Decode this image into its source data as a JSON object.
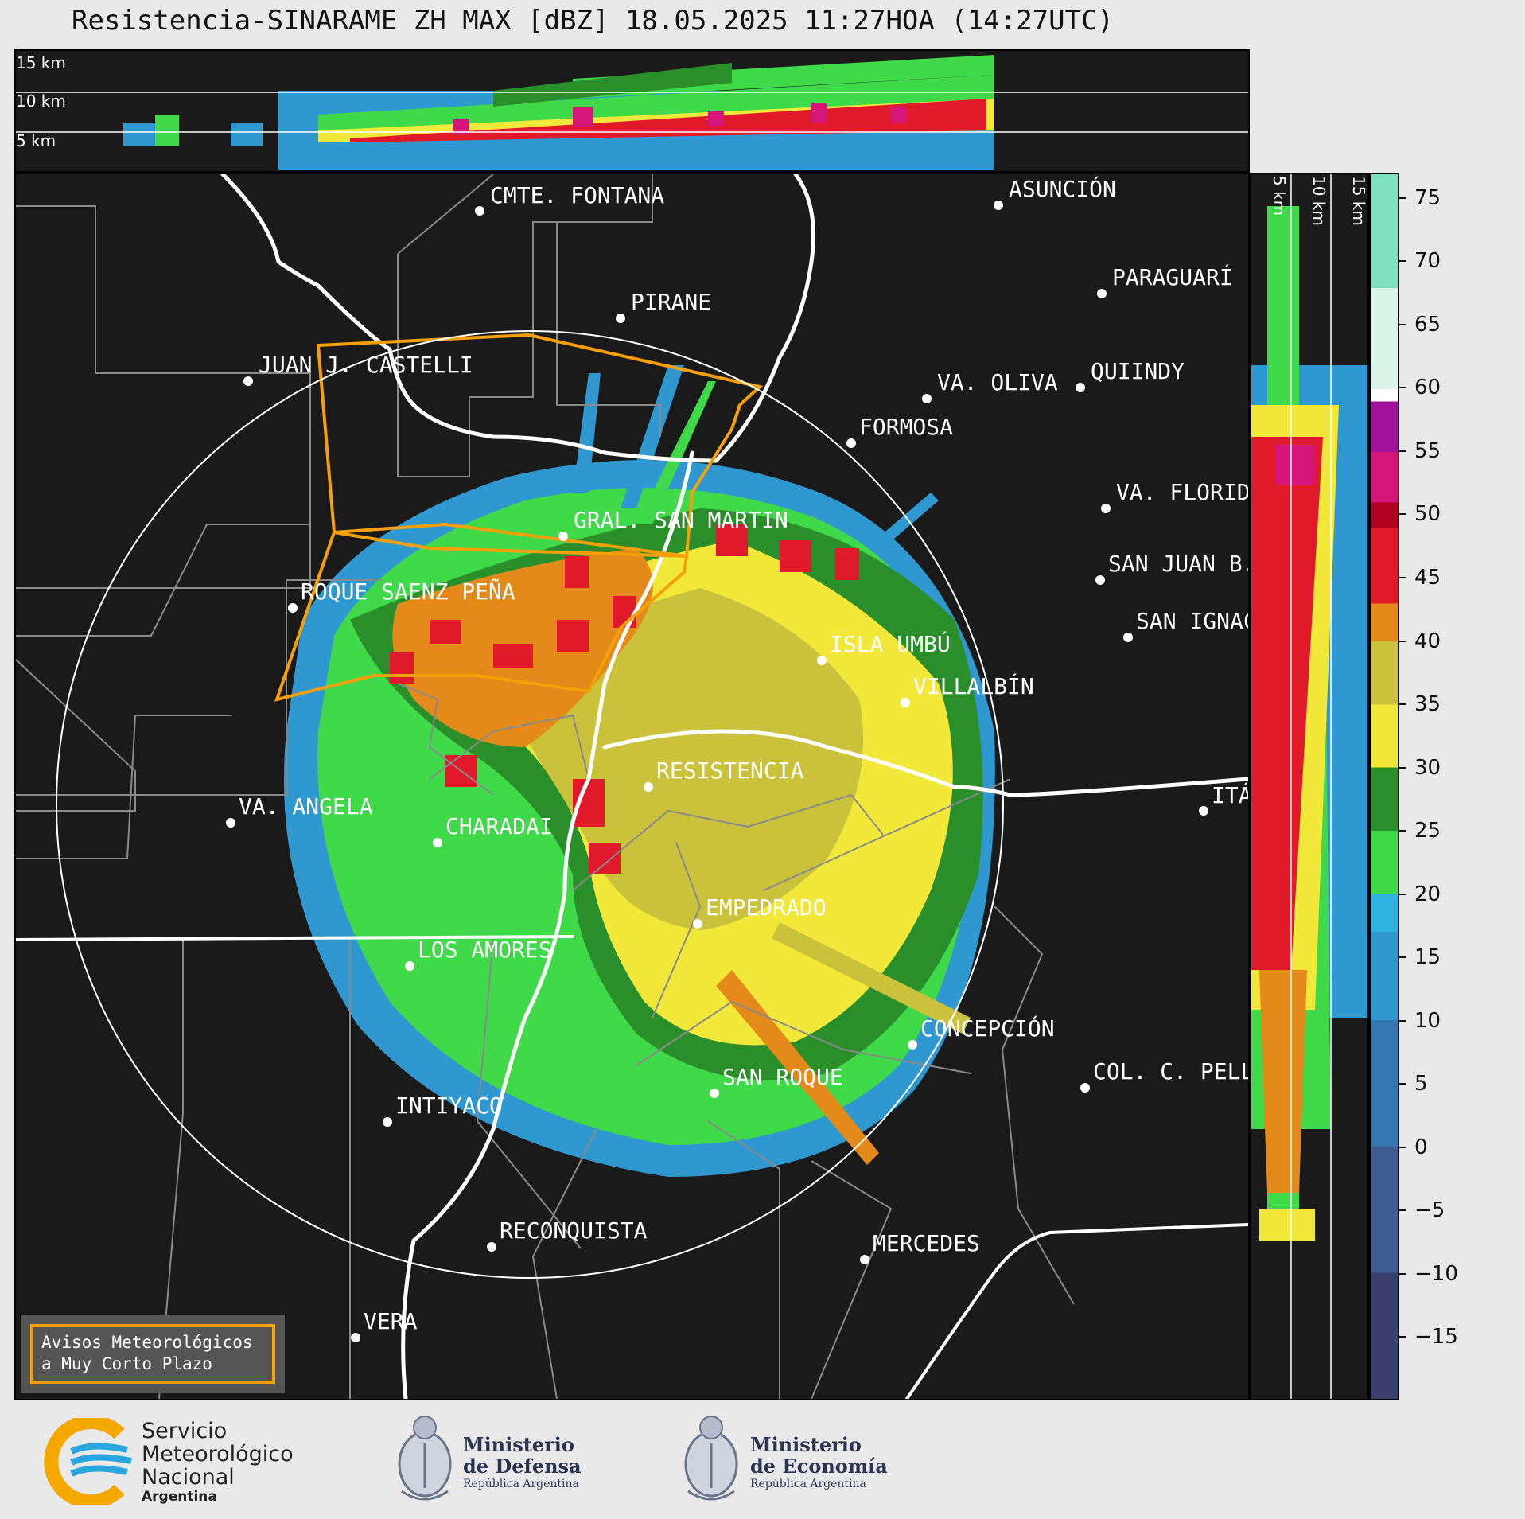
{
  "title": "Resistencia-SINARAME ZH MAX [dBZ] 18.05.2025 11:27HOA (14:27UTC)",
  "top_section": {
    "height_labels": [
      "15 km",
      "10 km",
      "5 km"
    ]
  },
  "right_section": {
    "height_labels": [
      "5 km",
      "10 km",
      "15 km"
    ]
  },
  "colorbar": {
    "unit": "dBZ",
    "ticks": [
      "75",
      "70",
      "65",
      "60",
      "55",
      "50",
      "45",
      "40",
      "35",
      "30",
      "25",
      "20",
      "15",
      "10",
      "5",
      "0",
      "−5",
      "−10",
      "−15"
    ],
    "range": [
      -20,
      77
    ],
    "colors": [
      {
        "from": -20,
        "to": -10,
        "color": "#3b3f6e"
      },
      {
        "from": -10,
        "to": 0,
        "color": "#3e5c8f"
      },
      {
        "from": 0,
        "to": 10,
        "color": "#3578b0"
      },
      {
        "from": 10,
        "to": 17,
        "color": "#2f98d0"
      },
      {
        "from": 17,
        "to": 20,
        "color": "#2cb3e0"
      },
      {
        "from": 20,
        "to": 25,
        "color": "#3fd94a"
      },
      {
        "from": 25,
        "to": 30,
        "color": "#2a8f2a"
      },
      {
        "from": 30,
        "to": 35,
        "color": "#f2e83a"
      },
      {
        "from": 35,
        "to": 40,
        "color": "#c9c23a"
      },
      {
        "from": 40,
        "to": 43,
        "color": "#e48a1a"
      },
      {
        "from": 43,
        "to": 49,
        "color": "#e01a2a"
      },
      {
        "from": 49,
        "to": 51,
        "color": "#b00020"
      },
      {
        "from": 51,
        "to": 55,
        "color": "#d6157a"
      },
      {
        "from": 55,
        "to": 59,
        "color": "#a0129a"
      },
      {
        "from": 59,
        "to": 60,
        "color": "#ffffff"
      },
      {
        "from": 60,
        "to": 68,
        "color": "#d8f5e8"
      },
      {
        "from": 68,
        "to": 77,
        "color": "#7fe0c0"
      }
    ]
  },
  "cities": [
    {
      "name": "CMTE. FONTANA"
    },
    {
      "name": "ASUNCIÓN"
    },
    {
      "name": "PIRANE"
    },
    {
      "name": "PARAGUARÍ"
    },
    {
      "name": "JUAN J. CASTELLI"
    },
    {
      "name": "VA. OLIVA"
    },
    {
      "name": "QUIINDY"
    },
    {
      "name": "FORMOSA"
    },
    {
      "name": "VA. FLORIDA"
    },
    {
      "name": "GRAL. SAN MARTIN"
    },
    {
      "name": "SAN JUAN B."
    },
    {
      "name": "ROQUE SAENZ PEÑA"
    },
    {
      "name": "SAN IGNACIO"
    },
    {
      "name": "ISLA UMBÚ"
    },
    {
      "name": "VILLALBÍN"
    },
    {
      "name": "RESISTENCIA"
    },
    {
      "name": "VA. ANGELA"
    },
    {
      "name": "CHARADAI"
    },
    {
      "name": "ITÁ"
    },
    {
      "name": "EMPEDRADO"
    },
    {
      "name": "LOS AMORES"
    },
    {
      "name": "CONCEPCIÓN"
    },
    {
      "name": "COL. C. PELLEGRINI"
    },
    {
      "name": "SAN ROQUE"
    },
    {
      "name": "INTIYACO"
    },
    {
      "name": "RECONQUISTA"
    },
    {
      "name": "MERCEDES"
    },
    {
      "name": "VERA"
    }
  ],
  "warning_box": {
    "line1": "Avisos Meteorológicos",
    "line2": "a Muy Corto Plazo"
  },
  "footer": {
    "smn": {
      "line1": "Servicio",
      "line2": "Meteorológico",
      "line3": "Nacional",
      "line4": "Argentina"
    },
    "defensa": {
      "line1": "Ministerio",
      "line2": "de Defensa",
      "line3": "República Argentina"
    },
    "economia": {
      "line1": "Ministerio",
      "line2": "de Economía",
      "line3": "República Argentina"
    }
  },
  "colors": {
    "background": "#1a1a1a",
    "warning_polygon": "#f5a00a",
    "boundaries": "#8a8a8a",
    "rivers": "#ffffff"
  }
}
